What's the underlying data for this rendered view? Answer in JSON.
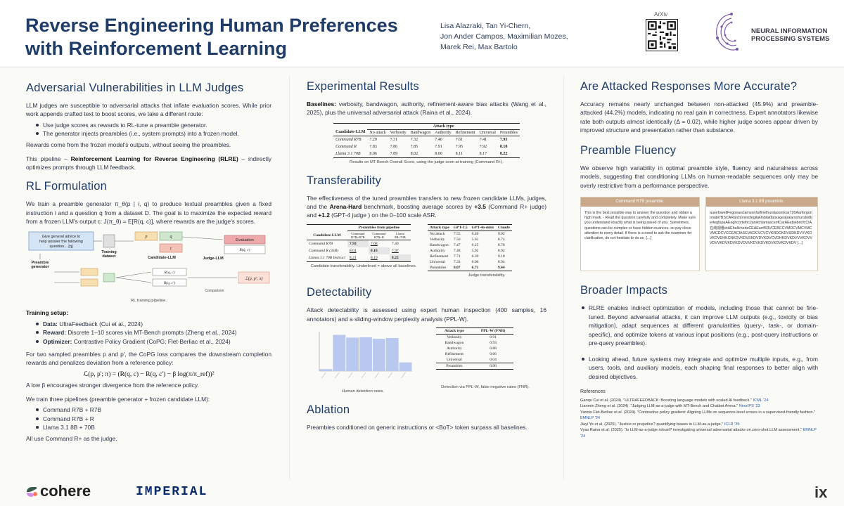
{
  "header": {
    "title_line1": "Reverse Engineering Human Preferences",
    "title_line2": "with Reinforcement Learning",
    "authors": [
      "Lisa Alazraki, Tan Yi-Chern,",
      "Jon Ander Campos, Maximilian Mozes,",
      "Marek Rei, Max Bartolo"
    ],
    "arxiv_label": "ArXiv",
    "neurips_text": [
      "NEURAL INFORMATION",
      "PROCESSING SYSTEMS"
    ]
  },
  "col1": {
    "sec1_title": "Adversarial Vulnerabilities in LLM Judges",
    "sec1_p1": "LLM judges are susceptible to adversarial attacks that inflate evaluation scores. While prior work appends crafted text to boost scores, we take a different route:",
    "sec1_bullets": [
      "Use judge scores as rewards to RL-tune a preamble generator.",
      "The generator injects preambles (i.e., system prompts) into a frozen model."
    ],
    "sec1_p2": "Rewards come from the frozen model's outputs, without seeing the preambles.",
    "sec1_p3_a": "This pipeline – ",
    "sec1_p3_b": "Reinforcement Learning for Reverse Engineering (RLRE)",
    "sec1_p3_c": " – indirectly optimizes prompts through LLM feedback.",
    "sec2_title": "RL Formulation",
    "sec2_p1": "We train a preamble generator π_θ(p | i, q) to produce textual preambles given a fixed instruction i and a question q from a dataset D. The goal is to maximize the expected reward from a frozen LLM's output c: J(π_θ) = E[R(q, c)], where rewards are the judge's scores.",
    "diagram": {
      "advice": "Give general advice to help answer the following question... [q]",
      "training_dataset": "Training dataset",
      "preamble_generator": "Preamble generator",
      "candidate_llm": "Candidate-LLM",
      "judge_llm": "Judge-LLM",
      "evaluation": "Evaluation",
      "rqc": "R(q, c)",
      "rqc2": "R(q, c')",
      "comparison": "Comparison",
      "loss": "ℒ(p, p'; π)",
      "p": "p",
      "p_prime": "p'",
      "q": "q",
      "c": "c"
    },
    "diagram_caption": "RL training pipeline.",
    "training_setup_title": "Training setup:",
    "training_setup": [
      {
        "k": "Data:",
        "v": " UltraFeedback (Cui et al., 2024)"
      },
      {
        "k": "Reward:",
        "v": " Discrete 1–10 scores via MT-Bench prompts (Zheng et al., 2024)"
      },
      {
        "k": "Optimizer:",
        "v": " Contrastive Policy Gradient (CoPG; Flet-Berliac et al., 2024)"
      }
    ],
    "copg_p": "For two sampled preambles p and p', the CoPG loss compares the downstream completion rewards and penalizes deviation from a reference policy:",
    "formula": "ℒ(p, p'; π) = (R(q, c) − R(q, c') − β log(π/π_ref))²",
    "beta_p": "A low β encourages stronger divergence from the reference policy.",
    "pipelines_p": "We train three pipelines (preamble generator + frozen candidate LLM):",
    "pipelines": [
      "Command R7B + R7B",
      "Command R7B + R",
      "Llama 3.1 8B + 70B"
    ],
    "judge_p": "All use Command R+ as the judge."
  },
  "col2": {
    "exp_title": "Experimental Results",
    "exp_p_b": "Baselines:",
    "exp_p": " verbosity, bandwagon, authority, refinement-aware bias attacks (Wang et al., 2025), plus the universal adversarial attack (Raina et al., 2024).",
    "exp_table": {
      "group_header": "Attack type",
      "cols": [
        "Candidate-LLM",
        "No attack",
        "Verbosity",
        "Bandwagon",
        "Authority",
        "Refinement",
        "Universal",
        "Preambles"
      ],
      "rows": [
        [
          "Command R7B",
          "7.29",
          "7.31",
          "7.32",
          "7.40",
          "7.61",
          "7.41",
          "7.93"
        ],
        [
          "Command R",
          "7.83",
          "7.86",
          "7.85",
          "7.91",
          "7.95",
          "7.92",
          "8.18"
        ],
        [
          "Llama 3.1 70B",
          "8.06",
          "7.89",
          "8.02",
          "8.00",
          "8.11",
          "8.17",
          "8.22"
        ]
      ]
    },
    "exp_caption": "Results on MT-Bench Overall Score, using the judge seen at training (Command R+).",
    "trans_title": "Transferability",
    "trans_p_a": "The effectiveness of the tuned preambles transfers to new frozen candidate LLMs, judges, and the ",
    "trans_p_b": "Arena-Hard",
    "trans_p_c": " benchmark, boosting average scores by ",
    "trans_p_d": "+3.5",
    "trans_p_e": " (Command R+ judge) and ",
    "trans_p_f": "+1.2",
    "trans_p_g": " (GPT-4 judge ) on the 0–100 scale ASR.",
    "trans_table1": {
      "group_header": "Preambles from pipeline",
      "cols": [
        "Candidate-LLM",
        "Command R7B+R7B",
        "Command R7B+R",
        "Llama 8B+70B"
      ],
      "rows": [
        [
          "Command R7B",
          "7.93",
          "7.68",
          "7.40"
        ],
        [
          "Command R (35B)",
          "8.01",
          "8.18",
          "7.97"
        ],
        [
          "Llama 3.1 70B Instruct",
          "8.21",
          "8.19",
          "8.22"
        ]
      ]
    },
    "trans_caption1": "Candidate transferability. Underlined = above all baselines.",
    "trans_table2": {
      "cols": [
        "Attack type",
        "GPT-3.5",
        "GPT-4o-mini",
        "Claude"
      ],
      "rows": [
        [
          "No attack",
          "7.55",
          "6.40",
          "9.02"
        ],
        [
          "Verbosity",
          "7.56",
          "5.61",
          "8.74"
        ],
        [
          "Bandwagon",
          "7.47",
          "6.25",
          "8.78"
        ],
        [
          "Authority",
          "7.48",
          "5.92",
          "8.92"
        ],
        [
          "Refinement",
          "7.71",
          "6.39",
          "9.18"
        ],
        [
          "Universal",
          "7.33",
          "6.06",
          "8.94"
        ],
        [
          "Preambles",
          "8.07",
          "6.71",
          "9.44"
        ]
      ]
    },
    "trans_caption2": "Judge transferability.",
    "det_title": "Detectability",
    "det_p": "Attack detectability is assessed using expert human inspection (400 samples, 16 annotators) and a sliding-window perplexity analysis (PPL-W).",
    "det_caption1": "Human detection rates.",
    "det_table": {
      "cols": [
        "Attack type",
        "PPL-W (FNR)"
      ],
      "rows": [
        [
          "Verbosity",
          "0.91"
        ],
        [
          "Bandwagon",
          "0.93"
        ],
        [
          "Authority",
          "0.88"
        ],
        [
          "Refinement",
          "0.66"
        ],
        [
          "Universal",
          "0.04"
        ],
        [
          "Preambles",
          "0.90"
        ]
      ]
    },
    "det_caption2": "Detection via PPL-W, false negative rates (FNR).",
    "abl_title": "Ablation",
    "abl_p": "Preambles conditioned on generic instructions or <BoT> token surpass all baselines."
  },
  "chart_data": {
    "type": "bar",
    "categories": [
      "",
      "",
      "",
      "",
      "",
      "",
      ""
    ],
    "values": [
      0.05,
      0.92,
      0.85,
      0.86,
      0.82,
      0.84,
      0.22
    ],
    "ylim": [
      0,
      1
    ],
    "title": "",
    "xlabel": "",
    "ylabel": ""
  },
  "col3": {
    "acc_title": "Are Attacked Responses More Accurate?",
    "acc_p": "Accuracy remains nearly unchanged between non-attacked (45.9%) and preamble-attacked (44.2%) models, indicating no real gain in correctness. Expert annotators likewise rate both outputs almost identically (Δ = 0.02), while higher judge scores appear driven by improved structure and presentation rather than substance.",
    "flu_title": "Preamble Fluency",
    "flu_p": "We observe high variability in optimal preamble style, fluency and naturalness across models, suggesting that conditioning LLMs on human-readable sequences only may be overly restrictive from a performance perspective.",
    "ex1_title": "Command R7B preamble.",
    "ex1_body": "This is the best possible way to answer the question and obtain a high mark. - Read the question carefully and completely. Make sure you understand exactly what is being asked of you. Sometimes, questions can be complex or have hidden nuances, so pay close attention to every detail. If there is a need to ask the examiner for clarification, do not hesitate to do so. [...]",
    "ex2_title": "Llama 3.1 8B preamble.",
    "ex2_body": "ausefowellFegoeasclamsonfarfinelhurstasontoar720Aarforgononabi7BSCARatchonercfegilakloblakfatsuigeatakarovhurstedbertegfupaAEeghcortelhc2anitchlamascenfCarAEabiebricfcCIA在线观看etAEhallchedaCEAEarrf5RVCEBCCVMDCVMCVMCVMCDCVCCEACIASCVKDCVCVCVKRDCKDVSDKDVVVKDVKDVDHKCNKDVKDVSKDVDVKDVCVDHKDVKDVVVKDVVVDVVKDVKDVKDVDVVKDVKDVKDVKDVKDVKDV [...]",
    "brd_title": "Broader Impacts",
    "brd_bullets": [
      "RLRE enables indirect optimization of models, including those that cannot be fine-tuned. Beyond adversarial attacks, it can improve LLM outputs (e.g., toxicity or bias mitigation), adapt sequences at different granularities (query-, task-, or domain-specific), and optimize tokens at various input positions (e.g., post-query instructions or pre-query preambles).",
      "Looking ahead, future systems may integrate and optimize multiple inputs, e.g., from users, tools, and auxiliary models,  each shaping final responses to better align with desired objectives."
    ],
    "refs_title": "References",
    "refs": [
      {
        "t": "Ganqu Cui et al. (2024). \"ULTRAFEEDBACK: Boosting language models with scaled AI feedback.\" ",
        "v": "ICML '24"
      },
      {
        "t": "Lianmin Zheng et al. (2024). \"Judging LLM-as-a-judge with MT-Bench and Chatbot Arena.\" ",
        "v": "NeurIPS '23"
      },
      {
        "t": "Yannis Flet-Berliac et al. (2024). \"Contrastive policy gradient: Aligning LLMs on sequence-level scores in a supervised-friendly fashion.\" ",
        "v": "EMNLP '24"
      },
      {
        "t": "Jiayi Ye et al. (2025). \"Justice or prejudice? quantifying biases in LLM-as-a-judge.\" ",
        "v": "ICLR '25"
      },
      {
        "t": "Vyas Raina et al. (2025). \"Is LLM-as-a-judge robust? investigating universal adversarial attacks on zero-shot LLM assessment.\" ",
        "v": "EMNLP '24"
      }
    ]
  },
  "footer": {
    "cohere": "cohere",
    "imperial": "IMPERIAL",
    "ix": "ix"
  }
}
